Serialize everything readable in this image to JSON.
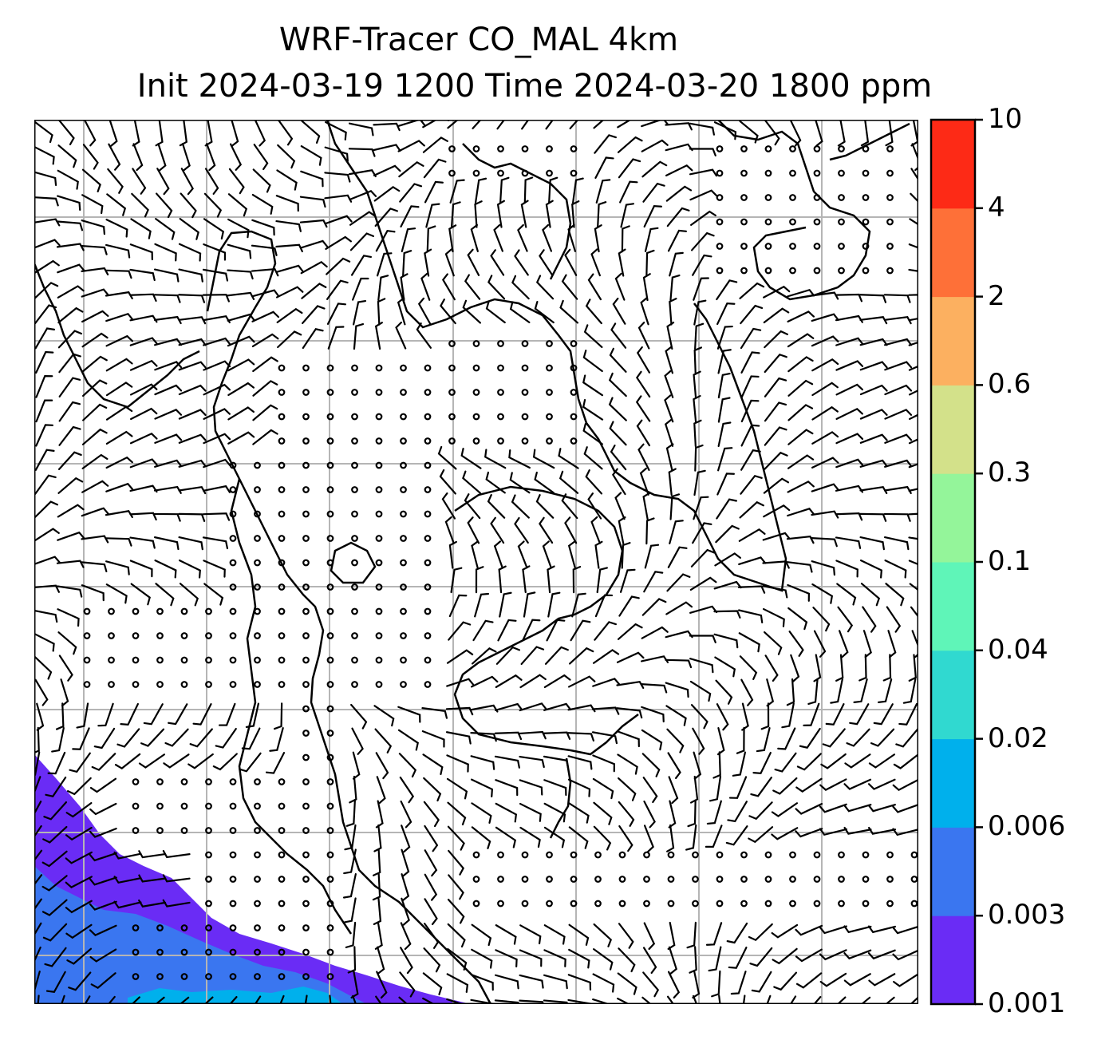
{
  "title": {
    "line1": "WRF-Tracer CO_MAL 4km",
    "line2": "Init 2024-03-19 1200 Time 2024-03-20 1800 ppm"
  },
  "colorbar": {
    "levels": [
      "0.001",
      "0.003",
      "0.006",
      "0.02",
      "0.04",
      "0.1",
      "0.3",
      "0.6",
      "2",
      "4",
      "10"
    ],
    "colors": [
      "#6a2cf5",
      "#3a76f0",
      "#00b0ec",
      "#30d9d0",
      "#5ff5b8",
      "#94f59a",
      "#d3e18a",
      "#fcb060",
      "#fe7038",
      "#fd2a16"
    ]
  },
  "map": {
    "layers": [
      "tracer-concentration-fill",
      "wind-barbs",
      "coastlines",
      "gridlines"
    ],
    "colors": {
      "gridline": "#b5b5b5",
      "coast": "#000000",
      "barb": "#000000"
    }
  }
}
